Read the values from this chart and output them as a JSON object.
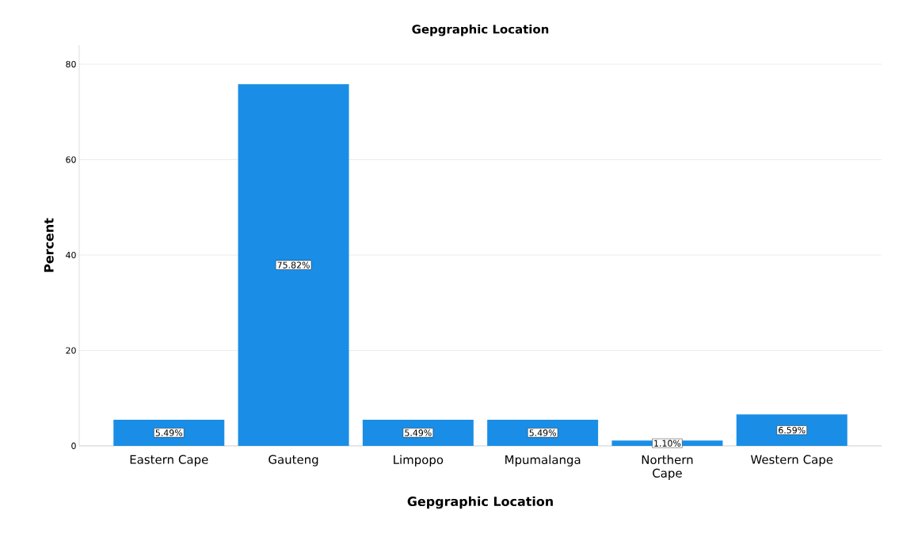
{
  "chart_data": {
    "type": "bar",
    "title": "Gepgraphic Location",
    "xlabel": "Gepgraphic Location",
    "ylabel": "Percent",
    "categories": [
      "Eastern Cape",
      "Gauteng",
      "Limpopo",
      "Mpumalanga",
      "Northern Cape",
      "Western Cape"
    ],
    "values": [
      5.49,
      75.82,
      5.49,
      5.49,
      1.1,
      6.59
    ],
    "value_labels": [
      "5.49%",
      "75.82%",
      "5.49%",
      "5.49%",
      "1.10%",
      "6.59%"
    ],
    "color": "#1a8ee6",
    "ylim": [
      0,
      84
    ],
    "yticks": [
      0,
      20,
      40,
      60,
      80
    ],
    "grid": "y"
  }
}
